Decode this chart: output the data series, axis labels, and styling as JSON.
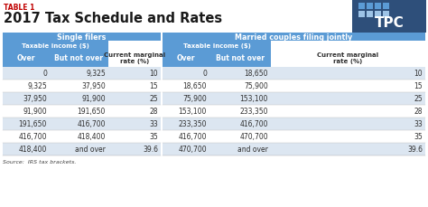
{
  "table1_label": "TABLE 1",
  "title": "2017 Tax Schedule and Rates",
  "source": "Source:  IRS tax brackets.",
  "header_bg": "#5b9bd5",
  "row_bg_alt": "#dce6f1",
  "row_bg_white": "#ffffff",
  "body_text_color": "#2f2f2f",
  "table1_color": "#c00000",
  "tpc_dark_blue": "#2e4f7a",
  "tpc_light_blue": "#5b9bd5",
  "tpc_lighter_blue": "#9dc3e6",
  "sep_color": "#ffffff",
  "single_filers": {
    "group_header": "Single filers",
    "sub_header": "Taxable income ($)",
    "col1": "Over",
    "col2": "But not over",
    "col3": "Current marginal\nrate (%)",
    "rows": [
      [
        "0",
        "9,325",
        "10"
      ],
      [
        "9,325",
        "37,950",
        "15"
      ],
      [
        "37,950",
        "91,900",
        "25"
      ],
      [
        "91,900",
        "191,650",
        "28"
      ],
      [
        "191,650",
        "416,700",
        "33"
      ],
      [
        "416,700",
        "418,400",
        "35"
      ],
      [
        "418,400",
        "and over",
        "39.6"
      ]
    ]
  },
  "married_filers": {
    "group_header": "Married couples filing jointly",
    "sub_header": "Taxable income ($)",
    "col1": "Over",
    "col2": "But not over",
    "col3": "Current marginal\nrate (%)",
    "rows": [
      [
        "0",
        "18,650",
        "10"
      ],
      [
        "18,650",
        "75,900",
        "15"
      ],
      [
        "75,900",
        "153,100",
        "25"
      ],
      [
        "153,100",
        "233,350",
        "28"
      ],
      [
        "233,350",
        "416,700",
        "33"
      ],
      [
        "416,700",
        "470,700",
        "35"
      ],
      [
        "470,700",
        "and over",
        "39.6"
      ]
    ]
  }
}
